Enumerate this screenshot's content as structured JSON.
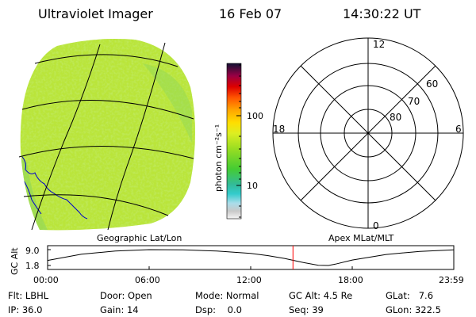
{
  "header": {
    "title": "Ultraviolet Imager",
    "date": "16 Feb 07",
    "time": "14:30:22 UT"
  },
  "panels": {
    "geo_caption": "Geographic Lat/Lon",
    "apex_caption": "Apex MLat/MLT"
  },
  "polar": {
    "mlt_labels": [
      "12",
      "18",
      "6",
      "0"
    ],
    "lat_labels": [
      "60",
      "70",
      "80"
    ]
  },
  "colors": {
    "disk_base": "#b2e23a",
    "grid_line": "#000000",
    "coast_line": "#0000cc",
    "marker_line": "#ff0000"
  },
  "chart_data": [
    {
      "type": "heatmap",
      "name": "colorbar",
      "ylabel": "photon cm⁻²s⁻¹",
      "scale": "log",
      "ylim": [
        2,
        600
      ],
      "tick_labels": [
        "100",
        "10"
      ],
      "tick_values": [
        100,
        10
      ]
    },
    {
      "type": "line",
      "ylabel": "GC Alt",
      "ytick_labels": [
        "9.0",
        "1.8"
      ],
      "ylim": [
        1.8,
        9.0
      ],
      "xtick_labels": [
        "00:00",
        "06:00",
        "12:00",
        "18:00",
        "23:59"
      ],
      "xlim_hours": [
        0,
        24
      ],
      "x": [
        0,
        2,
        4,
        6,
        8,
        10,
        12,
        13,
        14,
        15,
        16,
        16.6,
        17,
        18,
        20,
        22,
        24
      ],
      "y": [
        4.1,
        6.9,
        8.4,
        9.0,
        8.9,
        8.4,
        7.3,
        6.3,
        5.0,
        3.3,
        1.9,
        1.8,
        2.4,
        4.3,
        6.8,
        8.2,
        8.9
      ],
      "marker_hour": 14.5
    }
  ],
  "info": {
    "rows": [
      [
        {
          "label": "Flt:",
          "value": "LBHL"
        },
        {
          "label": "Door:",
          "value": "Open"
        },
        {
          "label": "Mode:",
          "value": "Normal"
        },
        {
          "label": "GC Alt:",
          "value": "4.5 Re"
        },
        {
          "label": "GLat:",
          "value": "7.6"
        }
      ],
      [
        {
          "label": "IP:",
          "value": "36.0"
        },
        {
          "label": "Gain:",
          "value": "14"
        },
        {
          "label": "Dsp:",
          "value": "0.0"
        },
        {
          "label": "Seq:",
          "value": "39"
        },
        {
          "label": "GLon:",
          "value": "322.5"
        }
      ]
    ]
  }
}
